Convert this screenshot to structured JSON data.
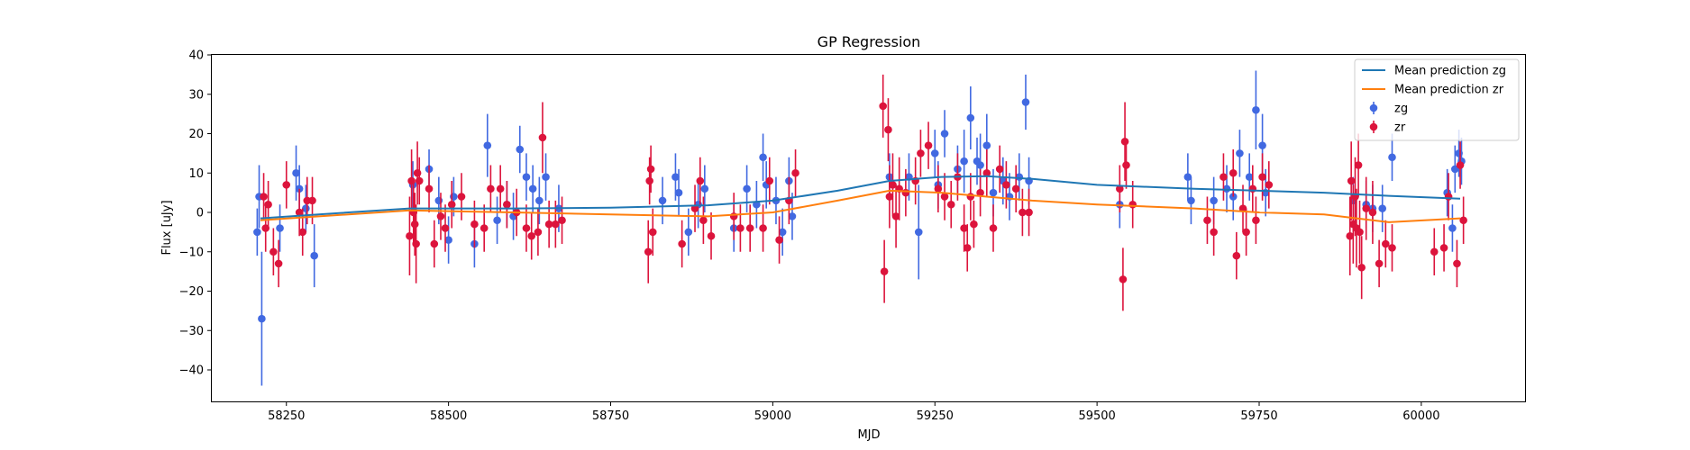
{
  "chart_data": {
    "type": "scatter",
    "title": "GP Regression",
    "xlabel": "MJD",
    "ylabel": "Flux [uJy]",
    "xlim": [
      58135,
      60160
    ],
    "ylim": [
      -48,
      40
    ],
    "xticks": [
      58250,
      58500,
      58750,
      59000,
      59250,
      59500,
      59750,
      60000
    ],
    "yticks": [
      -40,
      -30,
      -20,
      -10,
      0,
      10,
      20,
      30,
      40
    ],
    "legend_position": "top-right",
    "series": [
      {
        "name": "Mean prediction zg",
        "kind": "line",
        "color": "#1f77b4",
        "x": [
          58210,
          58300,
          58440,
          58600,
          58750,
          58900,
          59000,
          59100,
          59180,
          59260,
          59330,
          59400,
          59500,
          59650,
          59750,
          59850,
          59950,
          60060
        ],
        "y": [
          -1.5,
          -0.5,
          1,
          1,
          1.2,
          1.8,
          3,
          5.5,
          8,
          9,
          9.2,
          8.5,
          7,
          6,
          5.5,
          5,
          4.2,
          3.5
        ]
      },
      {
        "name": "Mean prediction zr",
        "kind": "line",
        "color": "#ff7f0e",
        "x": [
          58210,
          58300,
          58440,
          58600,
          58750,
          58900,
          59000,
          59100,
          59180,
          59260,
          59330,
          59400,
          59500,
          59650,
          59750,
          59850,
          59950,
          60060
        ],
        "y": [
          -2,
          -1,
          0.5,
          0,
          -0.5,
          -1,
          0,
          3,
          5.5,
          5,
          4,
          3,
          2,
          1,
          0,
          -0.5,
          -2.5,
          -1.5
        ]
      },
      {
        "name": "zg",
        "kind": "errorbar",
        "color": "#4169e1",
        "points": [
          [
            58205,
            -5,
            6
          ],
          [
            58208,
            4,
            8
          ],
          [
            58212,
            -27,
            17
          ],
          [
            58240,
            -4,
            6
          ],
          [
            58265,
            10,
            7
          ],
          [
            58270,
            6,
            6
          ],
          [
            58280,
            1,
            6
          ],
          [
            58293,
            -11,
            8
          ],
          [
            58445,
            7,
            6
          ],
          [
            58470,
            11,
            5
          ],
          [
            58485,
            3,
            6
          ],
          [
            58500,
            -7,
            6
          ],
          [
            58508,
            4,
            5
          ],
          [
            58540,
            -8,
            6
          ],
          [
            58560,
            17,
            8
          ],
          [
            58575,
            -2,
            6
          ],
          [
            58590,
            2,
            6
          ],
          [
            58600,
            -1,
            6
          ],
          [
            58610,
            16,
            6
          ],
          [
            58620,
            9,
            6
          ],
          [
            58630,
            6,
            6
          ],
          [
            58640,
            3,
            6
          ],
          [
            58650,
            9,
            6
          ],
          [
            58670,
            1,
            6
          ],
          [
            58830,
            3,
            6
          ],
          [
            58850,
            9,
            6
          ],
          [
            58855,
            5,
            6
          ],
          [
            58870,
            -5,
            6
          ],
          [
            58885,
            2,
            6
          ],
          [
            58895,
            6,
            6
          ],
          [
            58940,
            -4,
            6
          ],
          [
            58960,
            6,
            6
          ],
          [
            58975,
            2,
            6
          ],
          [
            58985,
            14,
            6
          ],
          [
            58990,
            7,
            6
          ],
          [
            59005,
            3,
            6
          ],
          [
            59015,
            -5,
            6
          ],
          [
            59025,
            8,
            6
          ],
          [
            59030,
            -1,
            6
          ],
          [
            59180,
            9,
            6
          ],
          [
            59210,
            9,
            6
          ],
          [
            59225,
            -5,
            12
          ],
          [
            59250,
            15,
            6
          ],
          [
            59255,
            7,
            6
          ],
          [
            59265,
            20,
            6
          ],
          [
            59285,
            11,
            6
          ],
          [
            59295,
            13,
            8
          ],
          [
            59305,
            24,
            8
          ],
          [
            59315,
            13,
            6
          ],
          [
            59320,
            12,
            8
          ],
          [
            59330,
            17,
            8
          ],
          [
            59340,
            5,
            6
          ],
          [
            59355,
            8,
            6
          ],
          [
            59365,
            4,
            6
          ],
          [
            59380,
            9,
            6
          ],
          [
            59390,
            28,
            7
          ],
          [
            59395,
            8,
            6
          ],
          [
            59535,
            2,
            6
          ],
          [
            59640,
            9,
            6
          ],
          [
            59645,
            3,
            6
          ],
          [
            59680,
            3,
            6
          ],
          [
            59700,
            6,
            6
          ],
          [
            59710,
            4,
            6
          ],
          [
            59720,
            15,
            6
          ],
          [
            59735,
            9,
            6
          ],
          [
            59745,
            26,
            10
          ],
          [
            59755,
            17,
            8
          ],
          [
            59760,
            5,
            6
          ],
          [
            59895,
            3,
            6
          ],
          [
            59915,
            2,
            6
          ],
          [
            59925,
            1,
            6
          ],
          [
            59940,
            1,
            6
          ],
          [
            59955,
            14,
            6
          ],
          [
            60040,
            5,
            6
          ],
          [
            60048,
            -4,
            6
          ],
          [
            60052,
            11,
            6
          ],
          [
            60058,
            15,
            6
          ],
          [
            60062,
            13,
            6
          ]
        ]
      },
      {
        "name": "zr",
        "kind": "errorbar",
        "color": "#dc143c",
        "points": [
          [
            58215,
            4,
            6
          ],
          [
            58218,
            -4,
            6
          ],
          [
            58222,
            2,
            6
          ],
          [
            58230,
            -10,
            6
          ],
          [
            58238,
            -13,
            6
          ],
          [
            58250,
            7,
            6
          ],
          [
            58270,
            0,
            6
          ],
          [
            58275,
            -5,
            6
          ],
          [
            58282,
            3,
            6
          ],
          [
            58290,
            3,
            6
          ],
          [
            58440,
            -6,
            10
          ],
          [
            58443,
            8,
            8
          ],
          [
            58446,
            0,
            8
          ],
          [
            58448,
            -3,
            8
          ],
          [
            58450,
            -8,
            10
          ],
          [
            58452,
            10,
            8
          ],
          [
            58455,
            8,
            6
          ],
          [
            58470,
            6,
            6
          ],
          [
            58478,
            -8,
            6
          ],
          [
            58488,
            -1,
            6
          ],
          [
            58495,
            -4,
            6
          ],
          [
            58505,
            2,
            6
          ],
          [
            58520,
            4,
            6
          ],
          [
            58540,
            -3,
            6
          ],
          [
            58555,
            -4,
            6
          ],
          [
            58565,
            6,
            6
          ],
          [
            58580,
            6,
            6
          ],
          [
            58590,
            2,
            6
          ],
          [
            58605,
            0,
            6
          ],
          [
            58620,
            -4,
            6
          ],
          [
            58628,
            -6,
            6
          ],
          [
            58638,
            -5,
            6
          ],
          [
            58645,
            19,
            9
          ],
          [
            58655,
            -3,
            6
          ],
          [
            58665,
            -3,
            6
          ],
          [
            58675,
            -2,
            6
          ],
          [
            58808,
            -10,
            8
          ],
          [
            58810,
            8,
            6
          ],
          [
            58812,
            11,
            6
          ],
          [
            58815,
            -5,
            6
          ],
          [
            58860,
            -8,
            6
          ],
          [
            58880,
            1,
            6
          ],
          [
            58888,
            8,
            6
          ],
          [
            58893,
            -2,
            6
          ],
          [
            58905,
            -6,
            6
          ],
          [
            58940,
            -1,
            6
          ],
          [
            58950,
            -4,
            6
          ],
          [
            58965,
            -4,
            6
          ],
          [
            58985,
            -4,
            6
          ],
          [
            58995,
            8,
            6
          ],
          [
            59010,
            -7,
            6
          ],
          [
            59025,
            3,
            6
          ],
          [
            59035,
            10,
            6
          ],
          [
            59170,
            27,
            8
          ],
          [
            59172,
            -15,
            8
          ],
          [
            59178,
            21,
            8
          ],
          [
            59180,
            4,
            8
          ],
          [
            59185,
            7,
            8
          ],
          [
            59190,
            -1,
            8
          ],
          [
            59195,
            6,
            8
          ],
          [
            59205,
            5,
            6
          ],
          [
            59220,
            8,
            6
          ],
          [
            59228,
            15,
            6
          ],
          [
            59240,
            17,
            6
          ],
          [
            59255,
            6,
            6
          ],
          [
            59265,
            4,
            6
          ],
          [
            59275,
            2,
            6
          ],
          [
            59285,
            9,
            6
          ],
          [
            59295,
            -4,
            6
          ],
          [
            59300,
            -9,
            6
          ],
          [
            59305,
            4,
            6
          ],
          [
            59310,
            -3,
            6
          ],
          [
            59320,
            5,
            6
          ],
          [
            59330,
            10,
            6
          ],
          [
            59340,
            -4,
            6
          ],
          [
            59350,
            11,
            6
          ],
          [
            59360,
            7,
            6
          ],
          [
            59375,
            6,
            6
          ],
          [
            59385,
            0,
            6
          ],
          [
            59395,
            0,
            6
          ],
          [
            59535,
            6,
            6
          ],
          [
            59540,
            -17,
            8
          ],
          [
            59543,
            18,
            10
          ],
          [
            59545,
            12,
            6
          ],
          [
            59555,
            2,
            6
          ],
          [
            59670,
            -2,
            6
          ],
          [
            59680,
            -5,
            6
          ],
          [
            59695,
            9,
            6
          ],
          [
            59710,
            10,
            6
          ],
          [
            59715,
            -11,
            6
          ],
          [
            59725,
            1,
            6
          ],
          [
            59730,
            -5,
            6
          ],
          [
            59740,
            6,
            6
          ],
          [
            59745,
            -2,
            6
          ],
          [
            59755,
            9,
            6
          ],
          [
            59765,
            7,
            6
          ],
          [
            59890,
            -6,
            10
          ],
          [
            59892,
            8,
            10
          ],
          [
            59895,
            -3,
            10
          ],
          [
            59898,
            4,
            10
          ],
          [
            59900,
            -4,
            10
          ],
          [
            59903,
            12,
            8
          ],
          [
            59905,
            -5,
            8
          ],
          [
            59908,
            -14,
            8
          ],
          [
            59915,
            1,
            8
          ],
          [
            59925,
            0,
            8
          ],
          [
            59935,
            -13,
            6
          ],
          [
            59945,
            -8,
            6
          ],
          [
            59955,
            -9,
            6
          ],
          [
            60020,
            -10,
            6
          ],
          [
            60035,
            -9,
            6
          ],
          [
            60042,
            4,
            6
          ],
          [
            60055,
            -13,
            6
          ],
          [
            60060,
            12,
            6
          ],
          [
            60065,
            -2,
            6
          ]
        ]
      }
    ]
  }
}
